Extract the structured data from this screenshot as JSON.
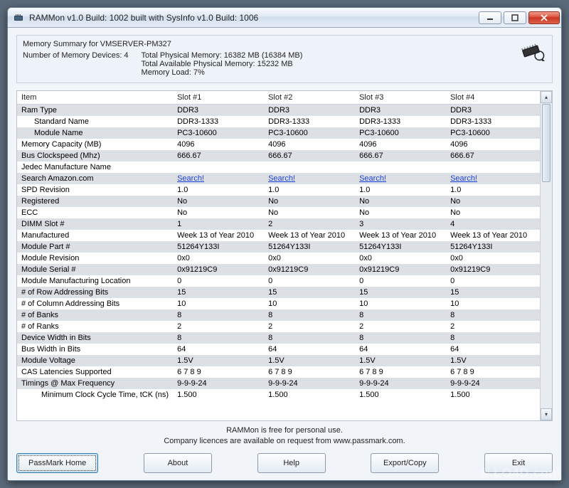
{
  "window": {
    "title": "RAMMon v1.0 Build: 1002 built with SysInfo v1.0 Build: 1006"
  },
  "summary": {
    "heading": "Memory Summary for VMSERVER-PM327",
    "devices_label": "Number of Memory Devices: 4",
    "total_physical": "Total Physical Memory: 16382 MB (16384 MB)",
    "total_available": "Total Available Physical Memory: 15232 MB",
    "memory_load": "Memory Load: 7%"
  },
  "columns": {
    "item": "Item",
    "s1": "Slot #1",
    "s2": "Slot #2",
    "s3": "Slot #3",
    "s4": "Slot #4"
  },
  "rows": [
    {
      "label": "Ram Type",
      "indent": 0,
      "strip": "odd",
      "v": [
        "DDR3",
        "DDR3",
        "DDR3",
        "DDR3"
      ]
    },
    {
      "label": "Standard Name",
      "indent": 1,
      "strip": "even",
      "v": [
        "DDR3-1333",
        "DDR3-1333",
        "DDR3-1333",
        "DDR3-1333"
      ]
    },
    {
      "label": "Module Name",
      "indent": 1,
      "strip": "odd",
      "v": [
        "PC3-10600",
        "PC3-10600",
        "PC3-10600",
        "PC3-10600"
      ]
    },
    {
      "label": "Memory Capacity (MB)",
      "indent": 0,
      "strip": "even",
      "v": [
        "4096",
        "4096",
        "4096",
        "4096"
      ]
    },
    {
      "label": "Bus Clockspeed (Mhz)",
      "indent": 0,
      "strip": "odd",
      "v": [
        "666.67",
        "666.67",
        "666.67",
        "666.67"
      ]
    },
    {
      "label": "Jedec Manufacture Name",
      "indent": 0,
      "strip": "even",
      "v": [
        "",
        "",
        "",
        ""
      ]
    },
    {
      "label": "Search Amazon.com",
      "indent": 0,
      "strip": "odd",
      "link": true,
      "v": [
        "Search!",
        "Search!",
        "Search!",
        "Search!"
      ]
    },
    {
      "label": "SPD Revision",
      "indent": 0,
      "strip": "even",
      "v": [
        "1.0",
        "1.0",
        "1.0",
        "1.0"
      ]
    },
    {
      "label": "Registered",
      "indent": 0,
      "strip": "odd",
      "v": [
        "No",
        "No",
        "No",
        "No"
      ]
    },
    {
      "label": "ECC",
      "indent": 0,
      "strip": "even",
      "v": [
        "No",
        "No",
        "No",
        "No"
      ]
    },
    {
      "label": "DIMM Slot #",
      "indent": 0,
      "strip": "odd",
      "v": [
        "1",
        "2",
        "3",
        "4"
      ]
    },
    {
      "label": "Manufactured",
      "indent": 0,
      "strip": "even",
      "v": [
        "Week 13 of Year 2010",
        "Week 13 of Year 2010",
        "Week 13 of Year 2010",
        "Week 13 of Year 2010"
      ]
    },
    {
      "label": "Module Part #",
      "indent": 0,
      "strip": "odd",
      "v": [
        "51264Y133I",
        "51264Y133I",
        "51264Y133I",
        "51264Y133I"
      ]
    },
    {
      "label": "Module Revision",
      "indent": 0,
      "strip": "even",
      "v": [
        "0x0",
        "0x0",
        "0x0",
        "0x0"
      ]
    },
    {
      "label": "Module Serial #",
      "indent": 0,
      "strip": "odd",
      "v": [
        "0x91219C9",
        "0x91219C9",
        "0x91219C9",
        "0x91219C9"
      ]
    },
    {
      "label": "Module Manufacturing Location",
      "indent": 0,
      "strip": "even",
      "v": [
        "0",
        "0",
        "0",
        "0"
      ]
    },
    {
      "label": "# of Row Addressing Bits",
      "indent": 0,
      "strip": "odd",
      "v": [
        "15",
        "15",
        "15",
        "15"
      ]
    },
    {
      "label": "# of Column Addressing Bits",
      "indent": 0,
      "strip": "even",
      "v": [
        "10",
        "10",
        "10",
        "10"
      ]
    },
    {
      "label": "# of Banks",
      "indent": 0,
      "strip": "odd",
      "v": [
        "8",
        "8",
        "8",
        "8"
      ]
    },
    {
      "label": "# of Ranks",
      "indent": 0,
      "strip": "even",
      "v": [
        "2",
        "2",
        "2",
        "2"
      ]
    },
    {
      "label": "Device Width in Bits",
      "indent": 0,
      "strip": "odd",
      "v": [
        "8",
        "8",
        "8",
        "8"
      ]
    },
    {
      "label": "Bus Width in Bits",
      "indent": 0,
      "strip": "even",
      "v": [
        "64",
        "64",
        "64",
        "64"
      ]
    },
    {
      "label": "Module Voltage",
      "indent": 0,
      "strip": "odd",
      "v": [
        "1.5V",
        "1.5V",
        "1.5V",
        "1.5V"
      ]
    },
    {
      "label": "CAS Latencies Supported",
      "indent": 0,
      "strip": "even",
      "v": [
        "6 7 8 9",
        "6 7 8 9",
        "6 7 8 9",
        "6 7 8 9"
      ]
    },
    {
      "label": "Timings @ Max Frequency",
      "indent": 0,
      "strip": "odd",
      "v": [
        "9-9-9-24",
        "9-9-9-24",
        "9-9-9-24",
        "9-9-9-24"
      ]
    },
    {
      "label": "Minimum Clock Cycle Time, tCK (ns)",
      "indent": 2,
      "strip": "even",
      "v": [
        "1.500",
        "1.500",
        "1.500",
        "1.500"
      ]
    }
  ],
  "footer": {
    "line1": "RAMMon is free for personal use.",
    "line2": "Company licences are available on request from www.passmark.com."
  },
  "buttons": {
    "home": "PassMark Home",
    "about": "About",
    "help": "Help",
    "export": "Export/Copy",
    "exit": "Exit"
  },
  "watermark": "© LO4D.com",
  "colors": {
    "row_odd": "#dcdfe3",
    "row_even": "#ffffff",
    "link": "#1a3fd6",
    "window_bg": "#f1f5fa"
  }
}
